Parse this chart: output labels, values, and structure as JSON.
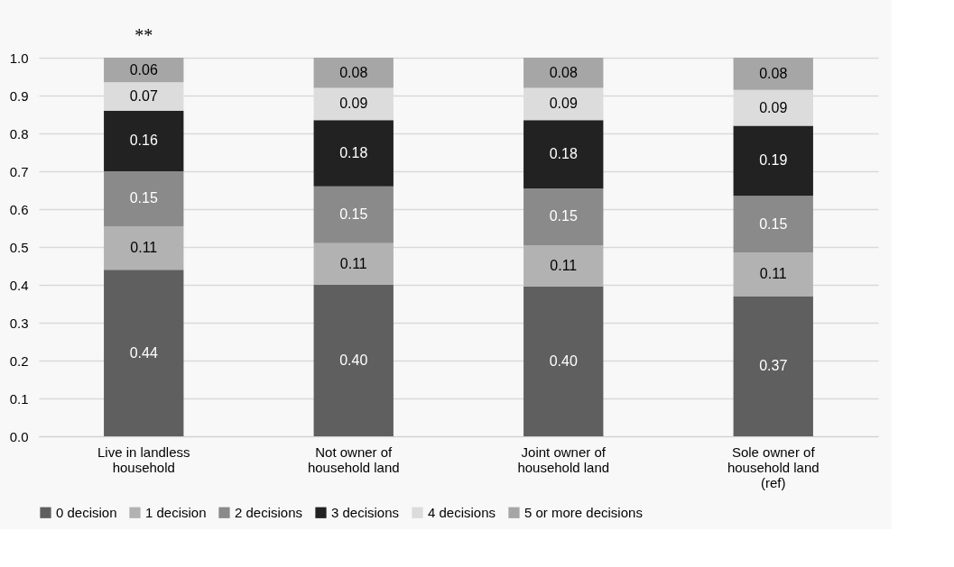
{
  "chart_data": {
    "type": "bar",
    "stacked": true,
    "categories": [
      "Live in landless household",
      "Not owner of household land",
      "Joint owner of household land",
      "Sole owner of household land (ref)"
    ],
    "series": [
      {
        "name": "0 decision",
        "color": "#5f5f5f",
        "values": [
          0.44,
          0.4,
          0.395,
          0.37
        ],
        "value_labels": [
          "0.44",
          "0.40",
          "0.40",
          "0.37"
        ]
      },
      {
        "name": "1 decision",
        "color": "#b2b2b2",
        "values": [
          0.115,
          0.11,
          0.11,
          0.115
        ],
        "value_labels": [
          "0.11",
          "0.11",
          "0.11",
          "0.11"
        ]
      },
      {
        "name": "2 decisions",
        "color": "#8a8a8a",
        "values": [
          0.145,
          0.15,
          0.15,
          0.15
        ],
        "value_labels": [
          "0.15",
          "0.15",
          "0.15",
          "0.15"
        ]
      },
      {
        "name": "3 decisions",
        "color": "#222222",
        "values": [
          0.16,
          0.175,
          0.18,
          0.185
        ],
        "value_labels": [
          "0.16",
          "0.18",
          "0.18",
          "0.19"
        ]
      },
      {
        "name": "4 decisions",
        "color": "#dcdcdc",
        "values": [
          0.075,
          0.085,
          0.085,
          0.095
        ],
        "value_labels": [
          "0.07",
          "0.09",
          "0.09",
          "0.09"
        ]
      },
      {
        "name": "5 or more decisions",
        "color": "#a6a6a6",
        "values": [
          0.065,
          0.08,
          0.08,
          0.085
        ],
        "value_labels": [
          "0.06",
          "0.08",
          "0.08",
          "0.08"
        ]
      }
    ],
    "ylim": [
      0,
      1.0
    ],
    "yticks": [
      {
        "value": 0,
        "label": "0.0"
      },
      {
        "value": 0.1,
        "label": "0.1"
      },
      {
        "value": 0.2,
        "label": "0.2"
      },
      {
        "value": 0.3,
        "label": "0.3"
      },
      {
        "value": 0.4,
        "label": "0.4"
      },
      {
        "value": 0.5,
        "label": "0.5"
      },
      {
        "value": 0.6,
        "label": "0.6"
      },
      {
        "value": 0.7,
        "label": "0.7"
      },
      {
        "value": 0.8,
        "label": "0.8"
      },
      {
        "value": 0.9,
        "label": "0.9"
      },
      {
        "value": 1.0,
        "label": "1.0"
      }
    ],
    "annotations": [
      {
        "text": "**",
        "x": "Live in landless household",
        "y": 1.0
      }
    ],
    "grid": "y",
    "legend": "bottom"
  }
}
